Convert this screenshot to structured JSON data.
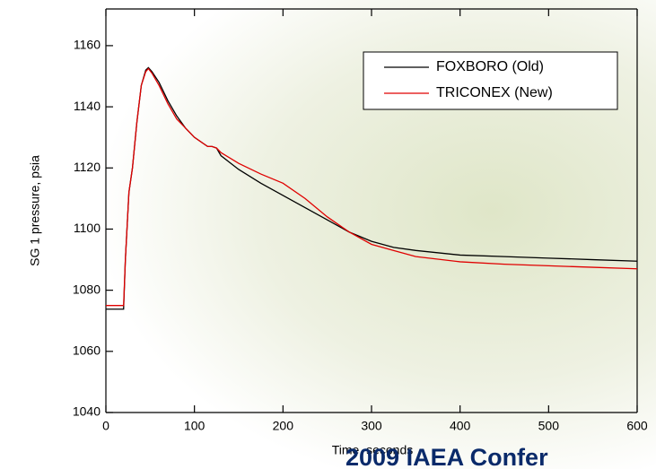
{
  "chart_data": {
    "type": "line",
    "x_label": "Time, seconds",
    "y_label": "SG 1 pressure, psia",
    "footer": "2009 IAEA Confer",
    "x": [
      0,
      20,
      22,
      26,
      30,
      35,
      40,
      45,
      48,
      52,
      60,
      70,
      80,
      90,
      100,
      110,
      115,
      120,
      125,
      130,
      150,
      175,
      200,
      225,
      250,
      275,
      300,
      325,
      350,
      400,
      450,
      500,
      550,
      600
    ],
    "series": [
      {
        "name": "FOXBORO (Old)",
        "color": "#000000",
        "values": [
          1073.8,
          1073.8,
          1090,
          1112,
          1120,
          1135,
          1147,
          1152,
          1152.8,
          1151.5,
          1148,
          1142,
          1137,
          1133,
          1130,
          1128,
          1127,
          1127,
          1126.5,
          1124,
          1119.5,
          1115,
          1111,
          1107,
          1103,
          1099,
          1096,
          1094,
          1093,
          1091.5,
          1091,
          1090.5,
          1090,
          1089.5
        ]
      },
      {
        "name": "TRICONEX (New)",
        "color": "#e00000",
        "values": [
          1075,
          1075,
          1090,
          1112,
          1120,
          1135,
          1147,
          1151.5,
          1152.5,
          1151,
          1147,
          1141,
          1136,
          1133,
          1130,
          1128,
          1127,
          1127,
          1126.5,
          1125,
          1121.5,
          1118,
          1115,
          1110,
          1104,
          1099,
          1095,
          1093,
          1091,
          1089.3,
          1088.5,
          1088,
          1087.5,
          1087
        ]
      }
    ],
    "xlim": [
      0,
      600
    ],
    "xticks": [
      0,
      100,
      200,
      300,
      400,
      500,
      600
    ],
    "ylim": [
      1040,
      1172
    ],
    "yticks": [
      1040,
      1060,
      1080,
      1100,
      1120,
      1140,
      1160
    ],
    "legend": "upper right",
    "grid": false
  }
}
